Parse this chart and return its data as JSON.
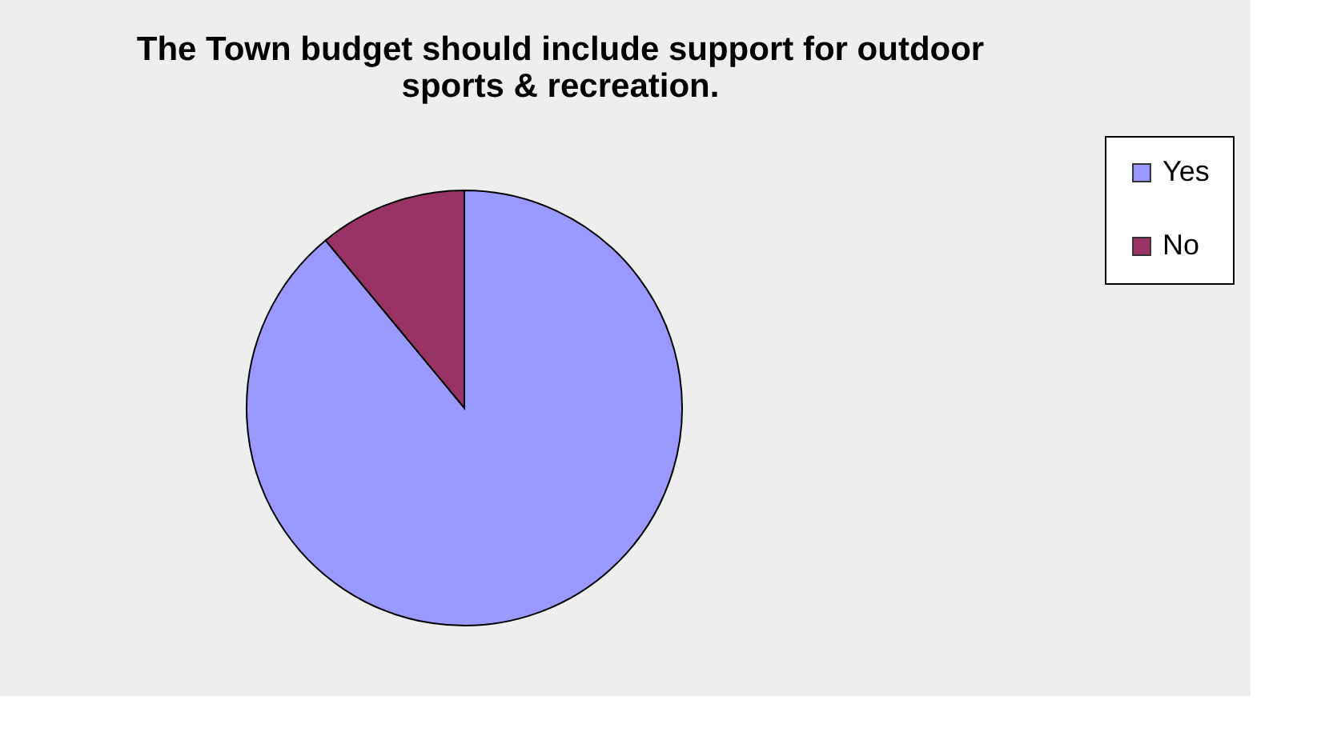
{
  "chart_data": {
    "type": "pie",
    "title": "The Town budget should include support for outdoor sports & recreation.",
    "categories": [
      "Yes",
      "No"
    ],
    "values": [
      89,
      11
    ],
    "colors": [
      "#9999ff",
      "#993366"
    ],
    "legend": "right"
  }
}
